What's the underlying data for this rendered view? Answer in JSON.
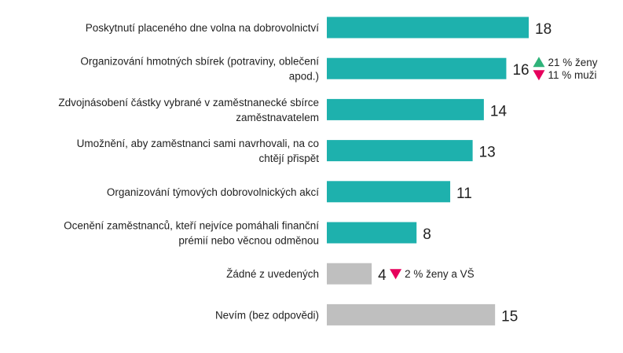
{
  "chart_data": {
    "type": "bar",
    "orientation": "horizontal",
    "grid": false,
    "categories": [
      [
        "Poskytnutí placeného dne volna na dobrovolnictví"
      ],
      [
        "Organizování hmotných sbírek (potraviny, oblečení",
        "apod.)"
      ],
      [
        "Zdvojnásobení částky vybrané v zaměstnanecké sbírce",
        "zaměstnavatelem"
      ],
      [
        "Umožnění, aby zaměstnanci sami navrhovali, na co",
        "chtějí přispět"
      ],
      [
        "Organizování týmových dobrovolnických akcí"
      ],
      [
        "Ocenění zaměstnanců, kteří nejvíce pomáhali finanční",
        "prémií nebo věcnou odměnou"
      ],
      [
        "Žádné z uvedených"
      ],
      [
        "Nevím (bez odpovědi)"
      ]
    ],
    "values": [
      18,
      16,
      14,
      13,
      11,
      8,
      4,
      15
    ],
    "bar_colors": [
      "#1eb1ad",
      "#1eb1ad",
      "#1eb1ad",
      "#1eb1ad",
      "#1eb1ad",
      "#1eb1ad",
      "#bfbfbf",
      "#bfbfbf"
    ],
    "xlim": [
      0,
      18
    ],
    "annotations": [
      {
        "category_index": 1,
        "items": [
          {
            "direction": "up",
            "color": "#2fb37a",
            "text": "21 % ženy"
          },
          {
            "direction": "down",
            "color": "#e6005c",
            "text": "11 % muži"
          }
        ]
      },
      {
        "category_index": 6,
        "items": [
          {
            "direction": "down",
            "color": "#e6005c",
            "text": "2 % ženy a VŠ"
          }
        ]
      }
    ]
  }
}
